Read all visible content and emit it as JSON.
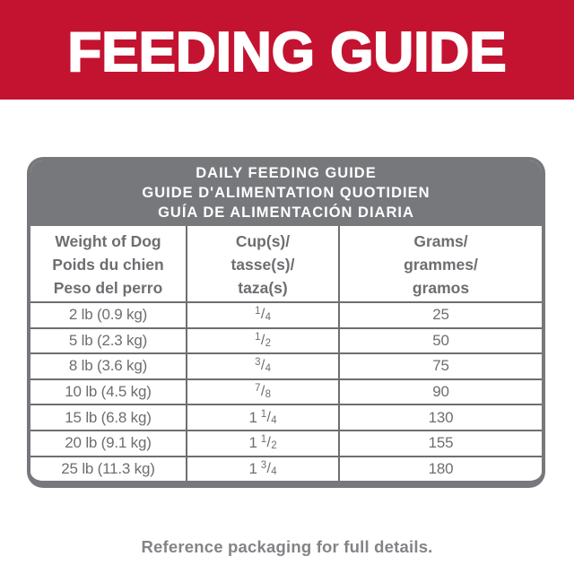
{
  "banner": {
    "title": "FEEDING GUIDE"
  },
  "colors": {
    "brand_red": "#C31330",
    "header_gray": "#77787B",
    "table_text_gray": "#6D6E71",
    "footer_gray": "#828487"
  },
  "feeding_table": {
    "title_lines": {
      "en": "DAILY FEEDING GUIDE",
      "fr": "GUIDE D'ALIMENTATION QUOTIDIEN",
      "es": "GUÍA DE ALIMENTACIÓN DIARIA"
    },
    "column_headers": {
      "weight": {
        "l1": "Weight of Dog",
        "l2": "Poids du chien",
        "l3": "Peso del perro"
      },
      "cups": {
        "l1": "Cup(s)/",
        "l2": "tasse(s)/",
        "l3": "taza(s)"
      },
      "grams": {
        "l1": "Grams/",
        "l2": "grammes/",
        "l3": "gramos"
      }
    },
    "fraction_separator": "/",
    "rows": [
      {
        "weight": "2 lb (0.9 kg)",
        "cups_whole": "",
        "cups_num": "1",
        "cups_den": "4",
        "grams": "25"
      },
      {
        "weight": "5 lb (2.3 kg)",
        "cups_whole": "",
        "cups_num": "1",
        "cups_den": "2",
        "grams": "50"
      },
      {
        "weight": "8 lb (3.6 kg)",
        "cups_whole": "",
        "cups_num": "3",
        "cups_den": "4",
        "grams": "75"
      },
      {
        "weight": "10 lb (4.5 kg)",
        "cups_whole": "",
        "cups_num": "7",
        "cups_den": "8",
        "grams": "90"
      },
      {
        "weight": "15 lb (6.8 kg)",
        "cups_whole": "1",
        "cups_num": "1",
        "cups_den": "4",
        "grams": "130"
      },
      {
        "weight": "20 lb (9.1 kg)",
        "cups_whole": "1",
        "cups_num": "1",
        "cups_den": "2",
        "grams": "155"
      },
      {
        "weight": "25 lb (11.3 kg)",
        "cups_whole": "1",
        "cups_num": "3",
        "cups_den": "4",
        "grams": "180"
      }
    ]
  },
  "footer": {
    "note": "Reference packaging for full details."
  }
}
